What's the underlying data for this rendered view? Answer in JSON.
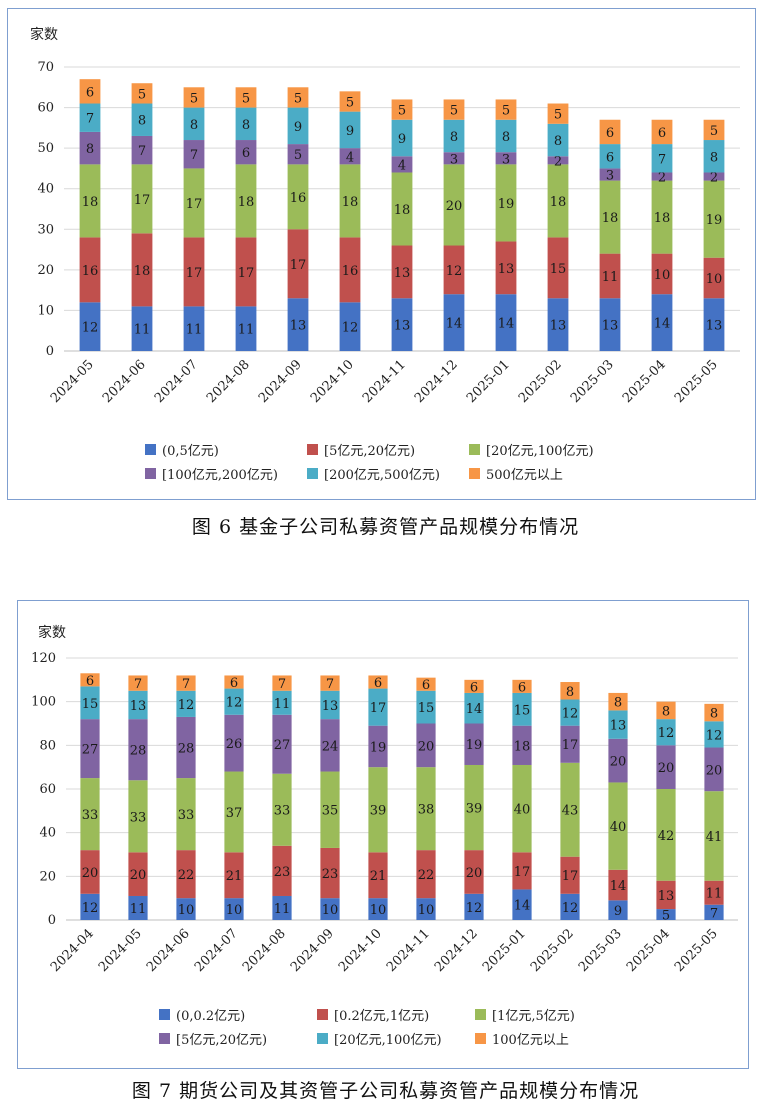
{
  "figure6": {
    "caption": "图 6   基金子公司私募资管产品规模分布情况",
    "chart_data": {
      "type": "bar",
      "stacked": true,
      "ylabel": "家数",
      "ylim": [
        0,
        70
      ],
      "yticks": [
        0,
        10,
        20,
        30,
        40,
        50,
        60,
        70
      ],
      "grid": true,
      "legend_position": "bottom",
      "categories": [
        "2024-05",
        "2024-06",
        "2024-07",
        "2024-08",
        "2024-09",
        "2024-10",
        "2024-11",
        "2024-12",
        "2025-01",
        "2025-02",
        "2025-03",
        "2025-04",
        "2025-05"
      ],
      "series": [
        {
          "name": "(0,5亿元)",
          "color": "#4472c4",
          "values": [
            12,
            11,
            11,
            11,
            13,
            12,
            13,
            14,
            14,
            13,
            13,
            14,
            13
          ]
        },
        {
          "name": "[5亿元,20亿元)",
          "color": "#c0504d",
          "values": [
            16,
            18,
            17,
            17,
            17,
            16,
            13,
            12,
            13,
            15,
            11,
            10,
            10
          ]
        },
        {
          "name": "[20亿元,100亿元)",
          "color": "#9bbb59",
          "values": [
            18,
            17,
            17,
            18,
            16,
            18,
            18,
            20,
            19,
            18,
            18,
            18,
            19
          ]
        },
        {
          "name": "[100亿元,200亿元)",
          "color": "#8064a2",
          "values": [
            8,
            7,
            7,
            6,
            5,
            4,
            4,
            3,
            3,
            2,
            3,
            2,
            2
          ]
        },
        {
          "name": "[200亿元,500亿元)",
          "color": "#4bacc6",
          "values": [
            7,
            8,
            8,
            8,
            9,
            9,
            9,
            8,
            8,
            8,
            6,
            7,
            8
          ]
        },
        {
          "name": "500亿元以上",
          "color": "#f79646",
          "values": [
            6,
            5,
            5,
            5,
            5,
            5,
            5,
            5,
            5,
            5,
            6,
            6,
            5
          ]
        }
      ]
    }
  },
  "figure7": {
    "caption": "图 7   期货公司及其资管子公司私募资管产品规模分布情况",
    "chart_data": {
      "type": "bar",
      "stacked": true,
      "ylabel": "家数",
      "ylim": [
        0,
        120
      ],
      "yticks": [
        0,
        20,
        40,
        60,
        80,
        100,
        120
      ],
      "grid": true,
      "legend_position": "bottom",
      "categories": [
        "2024-04",
        "2024-05",
        "2024-06",
        "2024-07",
        "2024-08",
        "2024-09",
        "2024-10",
        "2024-11",
        "2024-12",
        "2025-01",
        "2025-02",
        "2025-03",
        "2025-04",
        "2025-05"
      ],
      "series": [
        {
          "name": "(0,0.2亿元)",
          "color": "#4472c4",
          "values": [
            12,
            11,
            10,
            10,
            11,
            10,
            10,
            10,
            12,
            14,
            12,
            9,
            5,
            7
          ]
        },
        {
          "name": "[0.2亿元,1亿元)",
          "color": "#c0504d",
          "values": [
            20,
            20,
            22,
            21,
            23,
            23,
            21,
            22,
            20,
            17,
            17,
            14,
            13,
            11
          ]
        },
        {
          "name": "[1亿元,5亿元)",
          "color": "#9bbb59",
          "values": [
            33,
            33,
            33,
            37,
            33,
            35,
            39,
            38,
            39,
            40,
            43,
            40,
            42,
            41
          ]
        },
        {
          "name": "[5亿元,20亿元)",
          "color": "#8064a2",
          "values": [
            27,
            28,
            28,
            26,
            27,
            24,
            19,
            20,
            19,
            18,
            17,
            20,
            20,
            20
          ]
        },
        {
          "name": "[20亿元,100亿元)",
          "color": "#4bacc6",
          "values": [
            15,
            13,
            12,
            12,
            11,
            13,
            17,
            15,
            14,
            15,
            12,
            13,
            12,
            12
          ]
        },
        {
          "name": "100亿元以上",
          "color": "#f79646",
          "values": [
            6,
            7,
            7,
            6,
            7,
            7,
            6,
            6,
            6,
            6,
            8,
            8,
            8,
            8
          ]
        }
      ]
    }
  }
}
